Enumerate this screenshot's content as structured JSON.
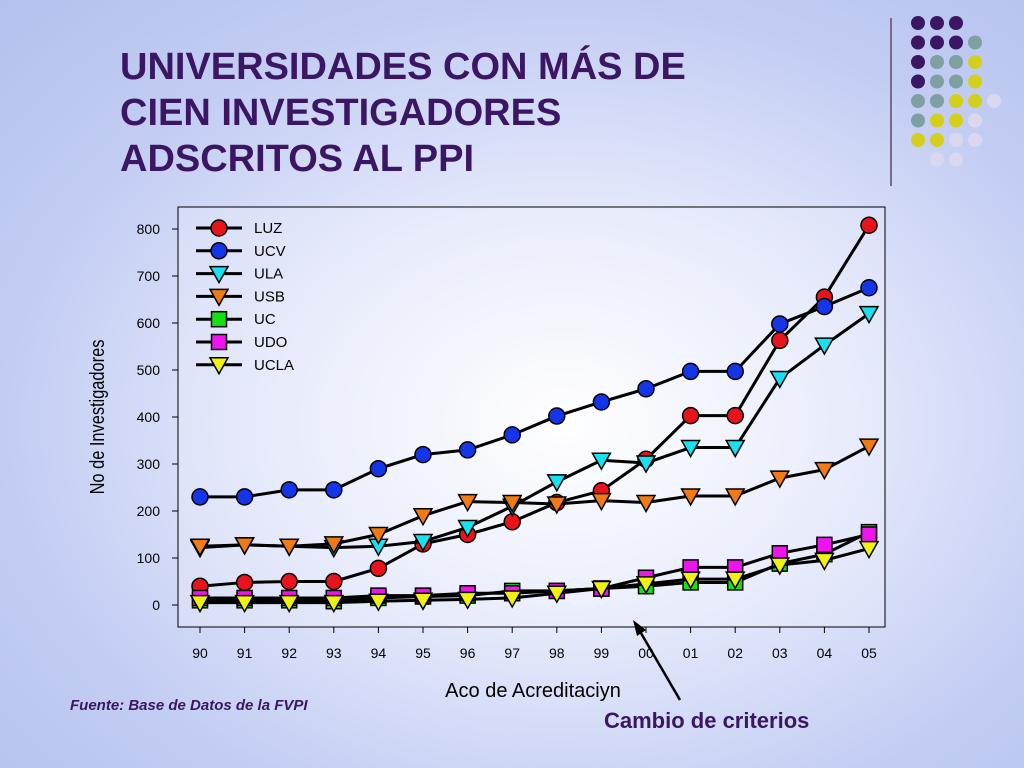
{
  "slide": {
    "title_lines": [
      "UNIVERSIDADES CON MÁS DE",
      "CIEN INVESTIGADORES",
      "ADSCRITOS AL PPI"
    ],
    "source": "Fuente: Base de Datos de la FVPI",
    "annotation": "Cambio de criterios"
  },
  "colors": {
    "title": "#3b1662",
    "deco_dots": [
      "#3b1662",
      "#7fa0a3",
      "#d4cf1c",
      "#d9d8f0"
    ]
  },
  "chart_data": {
    "type": "line",
    "xlabel": "Aco de Acreditaciyn",
    "ylabel": "No de Investigadores",
    "ylim": [
      0,
      800
    ],
    "yticks": [
      0,
      100,
      200,
      300,
      400,
      500,
      600,
      700,
      800
    ],
    "categories": [
      "90",
      "91",
      "92",
      "93",
      "94",
      "95",
      "96",
      "97",
      "98",
      "99",
      "00",
      "01",
      "02",
      "03",
      "04",
      "05"
    ],
    "legend_position": "top-left",
    "series": [
      {
        "name": "LUZ",
        "color": "#e8141b",
        "marker": "circle",
        "values": [
          40,
          48,
          50,
          50,
          78,
          130,
          150,
          177,
          218,
          243,
          310,
          403,
          403,
          563,
          655,
          808
        ]
      },
      {
        "name": "UCV",
        "color": "#1536e8",
        "marker": "circle",
        "values": [
          230,
          230,
          245,
          245,
          290,
          320,
          330,
          362,
          402,
          432,
          460,
          497,
          497,
          598,
          635,
          675
        ]
      },
      {
        "name": "ULA",
        "color": "#19e0f0",
        "marker": "triangle-down",
        "values": [
          122,
          128,
          125,
          122,
          125,
          135,
          165,
          210,
          262,
          308,
          302,
          335,
          335,
          482,
          553,
          620
        ]
      },
      {
        "name": "USB",
        "color": "#f07a14",
        "marker": "triangle-down",
        "values": [
          125,
          128,
          125,
          130,
          150,
          190,
          220,
          218,
          215,
          222,
          218,
          232,
          232,
          270,
          288,
          338
        ]
      },
      {
        "name": "UC",
        "color": "#14e014",
        "marker": "square",
        "values": [
          10,
          10,
          10,
          8,
          15,
          18,
          20,
          30,
          30,
          35,
          40,
          48,
          48,
          88,
          108,
          155
        ]
      },
      {
        "name": "UDO",
        "color": "#ee14ee",
        "marker": "square",
        "values": [
          15,
          15,
          15,
          15,
          20,
          20,
          25,
          25,
          30,
          35,
          58,
          80,
          80,
          110,
          128,
          150
        ]
      },
      {
        "name": "UCLA",
        "color": "#f0f014",
        "marker": "triangle-down",
        "values": [
          5,
          5,
          5,
          5,
          8,
          10,
          12,
          15,
          25,
          35,
          45,
          55,
          55,
          85,
          95,
          120
        ]
      }
    ]
  }
}
